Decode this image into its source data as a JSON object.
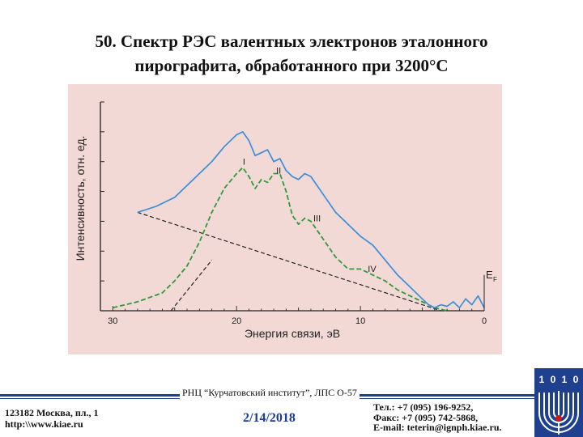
{
  "slide": {
    "title_line1": "50. Спектр РЭС валентных электронов эталонного",
    "title_line2": "пирографита, обработанного при 3200°С"
  },
  "footer": {
    "organization": "РНЦ “Курчатовский институт”,   ЛПС О-57",
    "address_line1": "123182 Москва, пл., 1",
    "address_line2": "http:\\\\www.kiae.ru",
    "date": "2/14/2018",
    "phone": "Тел.:    +7 (095) 196-9252,",
    "fax": "Факс:  +7 (095) 742-5868,",
    "email": "E-mail: teterin@ignph.kiae.ru.",
    "logo_digits": [
      "1",
      "0",
      "1",
      "0"
    ]
  },
  "colors": {
    "plot_background": "#f2d9d5",
    "total_curve": "#3a8fd9",
    "components": "#2f9a3a",
    "background_line": "#222222",
    "footer_accent": "#1f3f8f",
    "logo_blue": "#1f3f8f",
    "logo_red": "#cc1a1a"
  },
  "chart_data": {
    "type": "line",
    "xlabel": "Энергия связи, эВ",
    "ylabel": "Интенсивность, отн. ед.",
    "x_reversed": true,
    "xlim": [
      31,
      0
    ],
    "ylim": [
      0,
      7
    ],
    "xticks": [
      30,
      20,
      10,
      0
    ],
    "fermi_label": "E",
    "fermi_subscript": "F",
    "peak_labels": [
      {
        "text": "I",
        "x": 19.5,
        "y": 4.9
      },
      {
        "text": "II",
        "x": 16.8,
        "y": 4.6
      },
      {
        "text": "III",
        "x": 13.8,
        "y": 3.0
      },
      {
        "text": "IV",
        "x": 9.4,
        "y": 1.3
      }
    ],
    "series": [
      {
        "x": [
          28.0,
          26.5,
          25.0,
          23.5,
          22.0,
          21.0,
          20.0,
          19.5,
          19.0,
          18.5,
          18.0,
          17.5,
          17.0,
          16.5,
          16.0,
          15.5,
          15.0,
          14.5,
          14.0,
          13.0,
          12.0,
          11.0,
          10.0,
          9.0,
          8.0,
          7.0,
          6.0,
          5.0,
          4.5,
          4.0,
          3.5,
          3.0,
          2.5,
          2.0,
          1.5,
          1.0,
          0.5,
          0.0
        ],
        "y": [
          3.3,
          3.5,
          3.8,
          4.4,
          5.0,
          5.5,
          5.9,
          6.0,
          5.7,
          5.2,
          5.3,
          5.4,
          5.0,
          5.1,
          4.7,
          4.5,
          4.4,
          4.6,
          4.5,
          3.9,
          3.3,
          2.9,
          2.5,
          2.2,
          1.7,
          1.2,
          0.8,
          0.4,
          0.2,
          0.1,
          0.2,
          0.15,
          0.3,
          0.1,
          0.4,
          0.2,
          0.5,
          0.1
        ]
      },
      {
        "x": [
          30.0,
          28.0,
          26.0,
          25.0,
          24.0,
          23.0,
          22.0,
          21.0,
          20.0,
          19.5,
          19.0,
          18.5,
          18.0,
          17.5,
          17.0,
          16.5,
          16.0,
          15.5,
          15.0,
          14.5,
          14.0,
          13.0,
          12.0,
          11.0,
          10.0,
          9.0,
          8.0,
          7.0,
          6.0,
          5.0,
          4.0,
          3.0
        ],
        "y": [
          0.1,
          0.3,
          0.6,
          1.0,
          1.5,
          2.3,
          3.3,
          4.1,
          4.6,
          4.8,
          4.5,
          4.1,
          4.4,
          4.3,
          4.6,
          4.6,
          4.0,
          3.2,
          2.9,
          3.1,
          3.0,
          2.4,
          1.8,
          1.4,
          1.4,
          1.2,
          1.0,
          0.7,
          0.5,
          0.3,
          0.1,
          0.0
        ]
      }
    ],
    "background_lines": [
      {
        "x": [
          28.0,
          3.5
        ],
        "y": [
          3.3,
          0.0
        ]
      },
      {
        "x": [
          25.3,
          22.0
        ],
        "y": [
          0.0,
          1.7
        ]
      }
    ]
  }
}
